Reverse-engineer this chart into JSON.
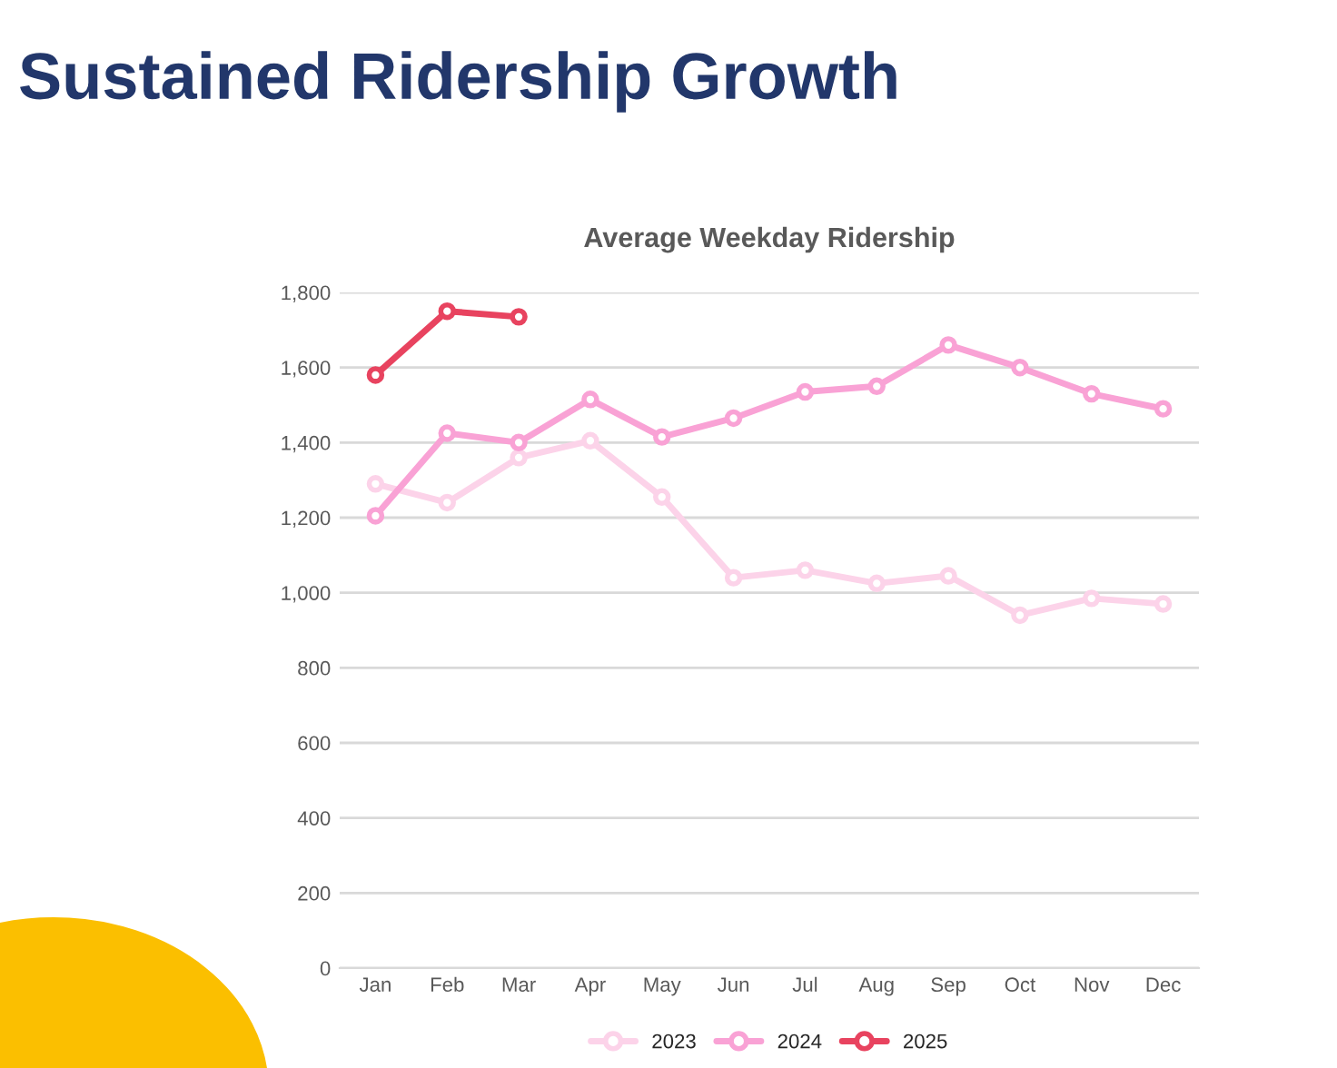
{
  "chart_data": {
    "type": "line",
    "title": "Sustained Ridership Growth",
    "subtitle": "Average Weekday Ridership",
    "categories": [
      "Jan",
      "Feb",
      "Mar",
      "Apr",
      "May",
      "Jun",
      "Jul",
      "Aug",
      "Sep",
      "Oct",
      "Nov",
      "Dec"
    ],
    "series": [
      {
        "name": "2023",
        "color": "#fcd3e9",
        "values": [
          1290,
          1240,
          1360,
          1405,
          1255,
          1040,
          1060,
          1025,
          1045,
          940,
          985,
          970
        ]
      },
      {
        "name": "2024",
        "color": "#f9a2d5",
        "values": [
          1205,
          1425,
          1400,
          1515,
          1415,
          1465,
          1535,
          1550,
          1660,
          1600,
          1530,
          1490
        ]
      },
      {
        "name": "2025",
        "color": "#e8435f",
        "values": [
          1580,
          1750,
          1735,
          null,
          null,
          null,
          null,
          null,
          null,
          null,
          null,
          null
        ]
      }
    ],
    "ylim": [
      0,
      1800
    ],
    "yticks": [
      0,
      200,
      400,
      600,
      800,
      {
        "value": 1000,
        "label": "1,000"
      },
      {
        "value": 1200,
        "label": "1,200"
      },
      {
        "value": 1400,
        "label": "1,400"
      },
      {
        "value": 1600,
        "label": "1,600"
      },
      {
        "value": 1800,
        "label": "1,800"
      }
    ],
    "grid": "y",
    "legend": "bottom",
    "marker": "circle",
    "line_style": "solid"
  }
}
